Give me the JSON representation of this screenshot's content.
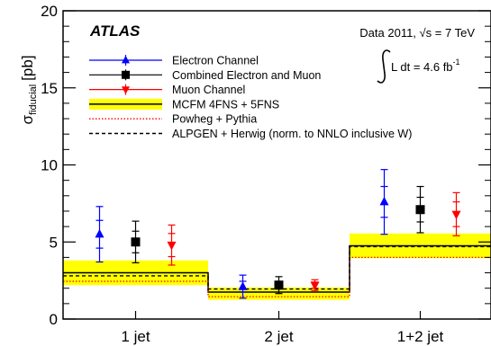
{
  "chart_data": {
    "type": "scatter",
    "experiment": "ATLAS",
    "data_note": "Data 2011, √s = 7 TeV",
    "luminosity": "L dt = 4.6 fb",
    "luminosity_exp": "-1",
    "ylabel_main": "σ",
    "ylabel_sub": "fiducial",
    "ylabel_unit": "[pb]",
    "xlabel": "",
    "ylim": [
      0,
      20
    ],
    "y_ticks": [
      "0",
      "5",
      "10",
      "15",
      "20"
    ],
    "categories": [
      "1 jet",
      "2 jet",
      "1+2 jet"
    ],
    "legend_position": "top-center",
    "grid": false,
    "series": [
      {
        "name": "Electron Channel",
        "color": "#0000ff",
        "marker": "triangle-up",
        "values": [
          5.5,
          2.1,
          7.6
        ],
        "inner_err": [
          0.9,
          0.35,
          1.0
        ],
        "outer_err": [
          1.8,
          0.75,
          2.1
        ]
      },
      {
        "name": "Combined Electron and Muon",
        "color": "#000000",
        "marker": "square",
        "values": [
          5.0,
          2.2,
          7.1
        ],
        "inner_err": [
          0.7,
          0.25,
          0.8
        ],
        "outer_err": [
          1.35,
          0.55,
          1.5
        ]
      },
      {
        "name": "Muon Channel",
        "color": "#ff0000",
        "marker": "triangle-down",
        "values": [
          4.8,
          2.2,
          6.8
        ],
        "inner_err": [
          0.75,
          0.2,
          0.8
        ],
        "outer_err": [
          1.3,
          0.35,
          1.4
        ]
      }
    ],
    "predictions": [
      {
        "name": "MCFM 4FNS + 5FNS",
        "style": "band",
        "band_color": "#ffff00",
        "line_color": "#000000",
        "central": [
          3.0,
          1.75,
          4.75
        ],
        "low": [
          2.2,
          1.25,
          3.95
        ],
        "high": [
          3.8,
          2.05,
          5.55
        ]
      },
      {
        "name": "Powheg + Pythia",
        "style": "dotted",
        "line_color": "#ff0000",
        "values": [
          2.45,
          1.45,
          4.0
        ]
      },
      {
        "name": "ALPGEN + Herwig (norm. to NNLO inclusive W)",
        "style": "dashed",
        "line_color": "#000000",
        "values": [
          2.8,
          1.95,
          4.7
        ]
      }
    ]
  }
}
